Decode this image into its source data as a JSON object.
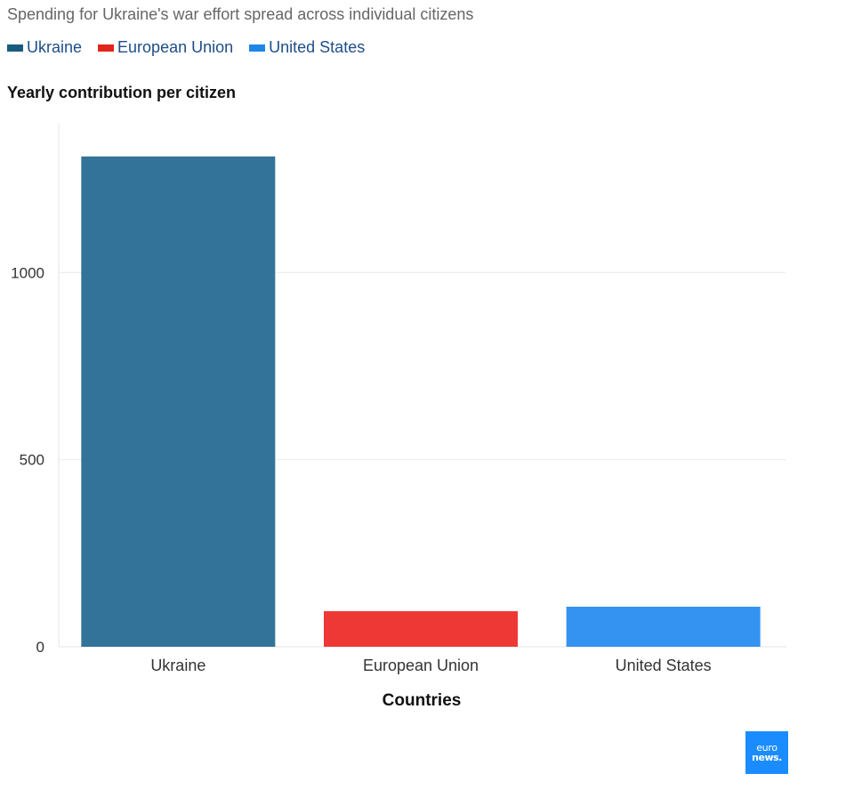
{
  "chart_data": {
    "type": "bar",
    "subtitle": "Spending for Ukraine's war effort spread across individual citizens",
    "title": "Yearly contribution per citizen",
    "xlabel": "Countries",
    "ylabel": "Yearly contribution per citizen",
    "categories": [
      "Ukraine",
      "European Union",
      "United States"
    ],
    "values": [
      1310,
      95,
      107
    ],
    "colors": [
      "#337399",
      "#ee3835",
      "#3492f0"
    ],
    "ylim": [
      0,
      1400
    ],
    "yticks": [
      0,
      500,
      1000
    ],
    "grid": true,
    "legend": {
      "position": "top-left",
      "items": [
        {
          "label": "Ukraine",
          "color": "#1a5a7e"
        },
        {
          "label": "European Union",
          "color": "#e1251b"
        },
        {
          "label": "United States",
          "color": "#1f86e8"
        }
      ]
    }
  },
  "branding": {
    "logo_line1": "euro",
    "logo_line2": "news."
  }
}
